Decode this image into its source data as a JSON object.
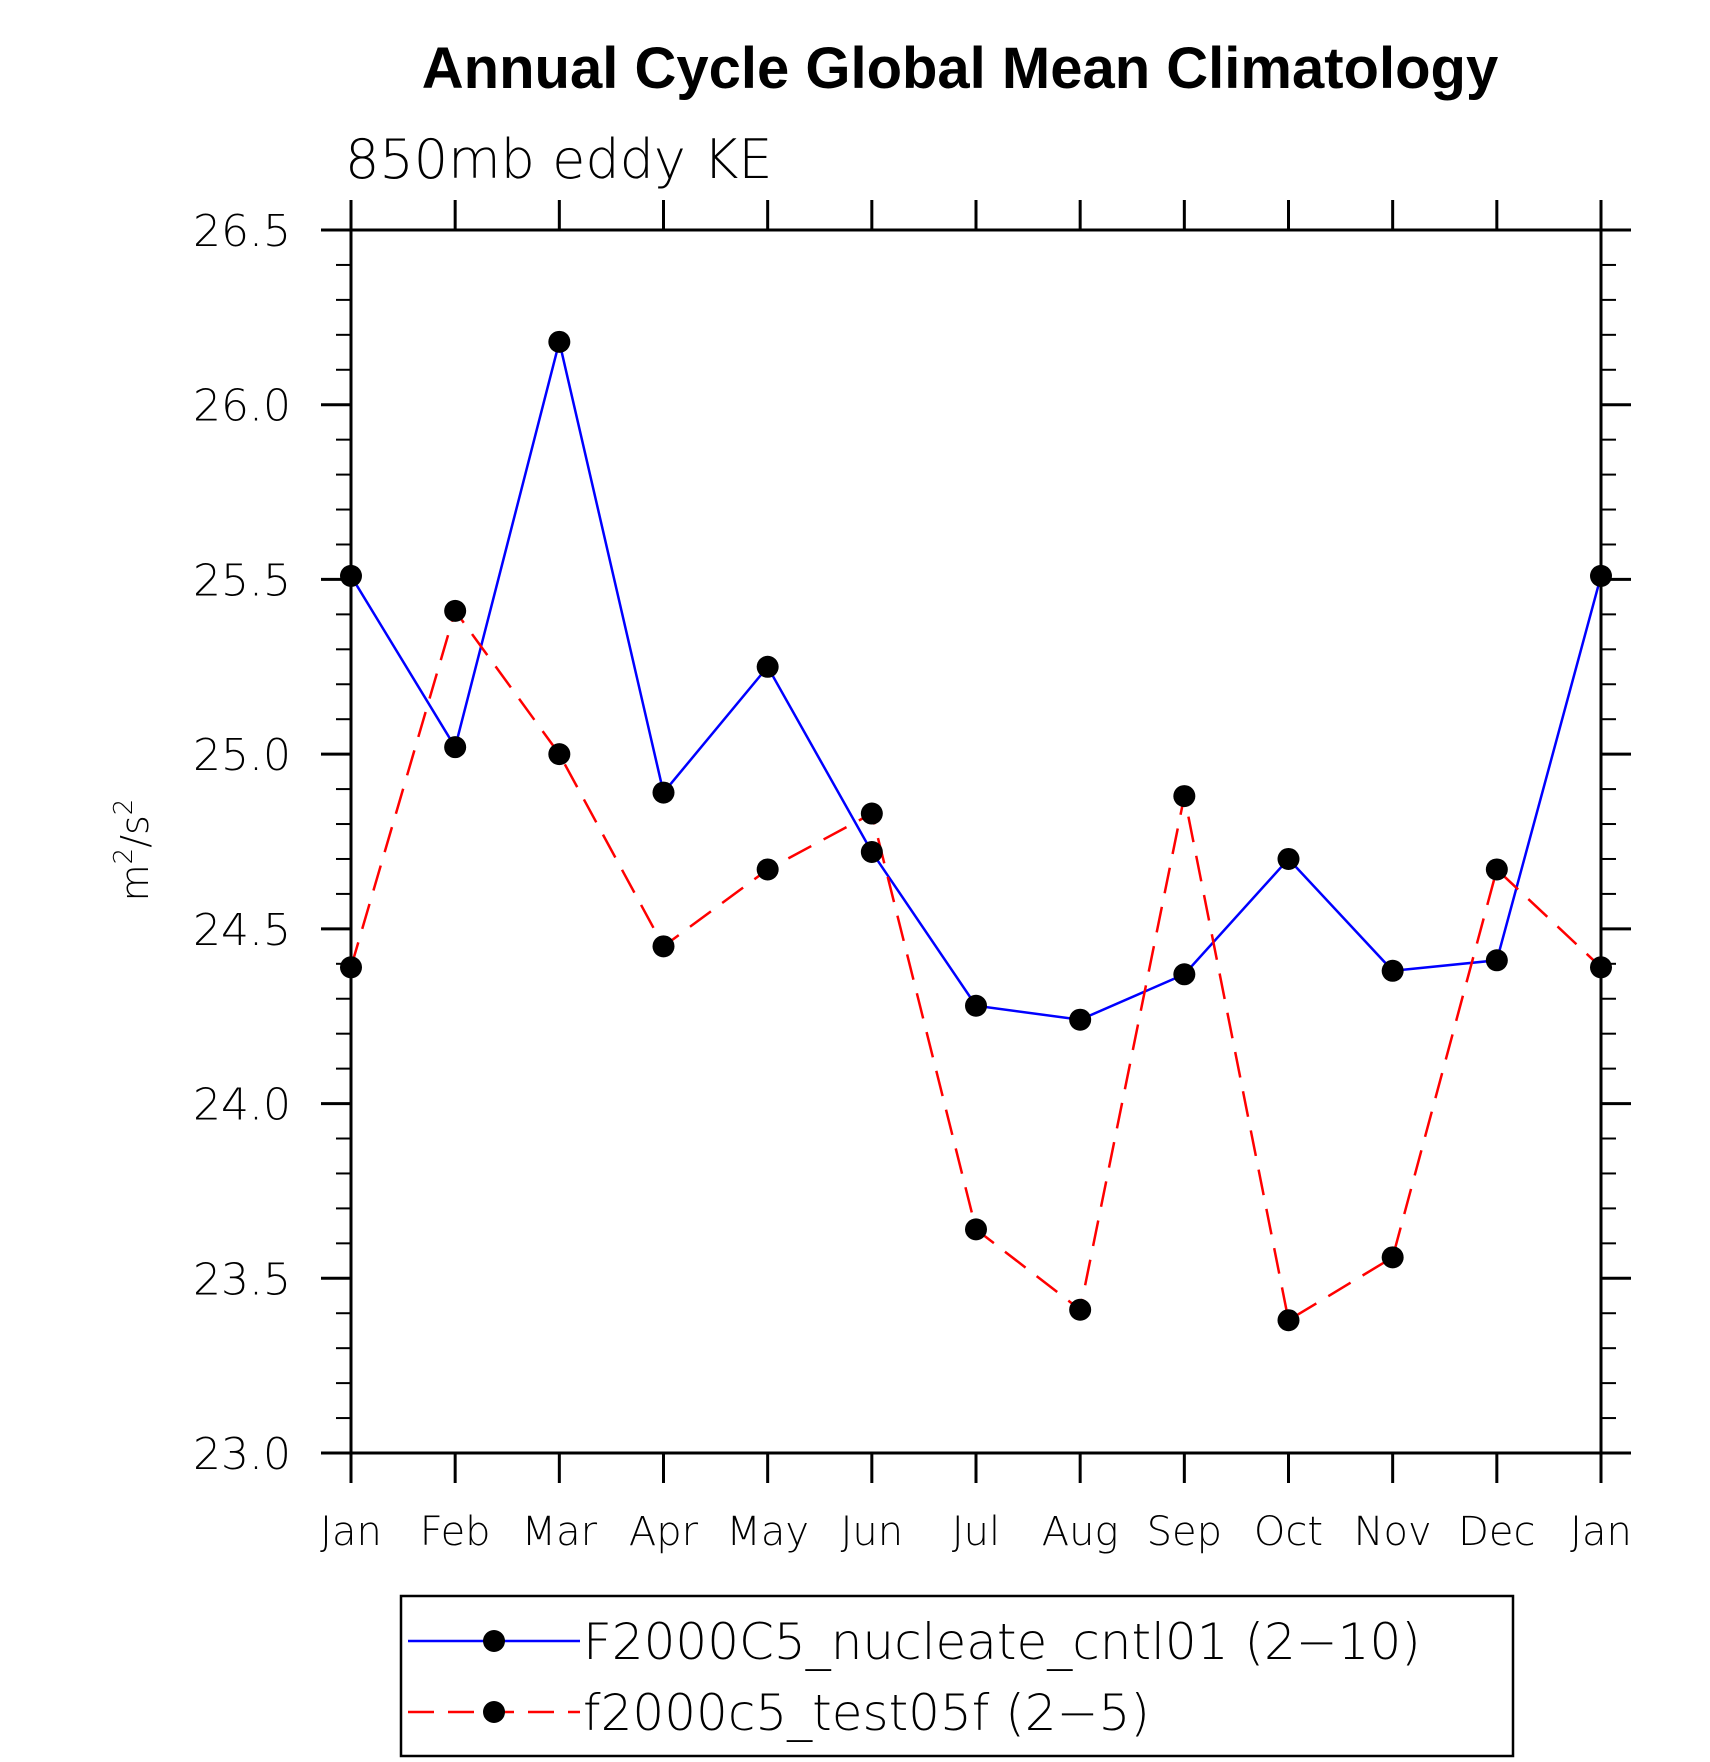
{
  "chart_data": {
    "type": "line",
    "title": "Annual Cycle Global Mean Climatology",
    "subtitle": "850mb eddy KE",
    "ylabel": "m²/s²",
    "ylabel_parts": {
      "base1": "m",
      "sup1": "2",
      "mid": "/s",
      "sup2": "2"
    },
    "xlabel": "",
    "categories": [
      "Jan",
      "Feb",
      "Mar",
      "Apr",
      "May",
      "Jun",
      "Jul",
      "Aug",
      "Sep",
      "Oct",
      "Nov",
      "Dec",
      "Jan"
    ],
    "ylim": [
      23.0,
      26.5
    ],
    "yticks": [
      "23.0",
      "23.5",
      "24.0",
      "24.5",
      "25.0",
      "25.5",
      "26.0",
      "26.5"
    ],
    "series": [
      {
        "name": "F2000C5_nucleate_cntl01 (2−10)",
        "color": "#0000ff",
        "style": "solid",
        "values": [
          25.51,
          25.02,
          26.18,
          24.89,
          25.25,
          24.72,
          24.28,
          24.24,
          24.37,
          24.7,
          24.38,
          24.41,
          25.51
        ]
      },
      {
        "name": "f2000c5_test05f (2−5)",
        "color": "#ff0000",
        "style": "dashed",
        "values": [
          24.39,
          25.41,
          25.0,
          24.45,
          24.67,
          24.83,
          23.64,
          23.41,
          24.88,
          23.38,
          23.56,
          24.67,
          24.39
        ]
      }
    ],
    "legend_position": "bottom"
  }
}
